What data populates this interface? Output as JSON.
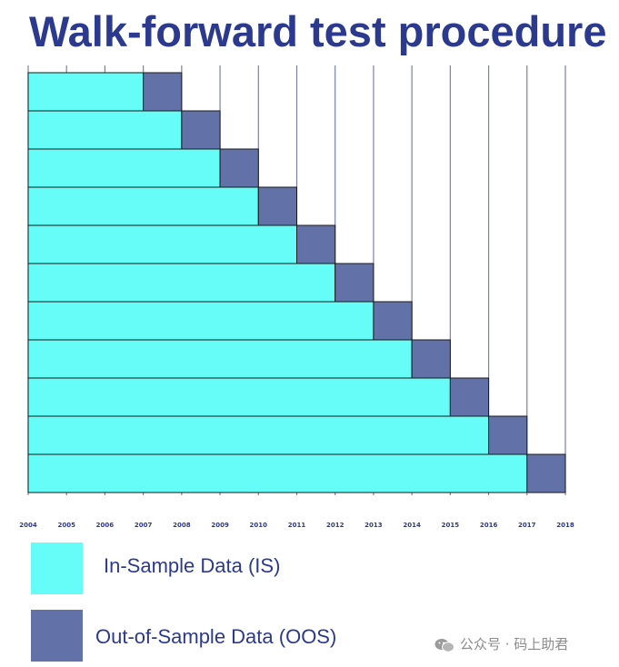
{
  "title": "Walk-forward test procedure",
  "chart_data": {
    "type": "bar",
    "orientation": "horizontal-stacked",
    "x_ticks": [
      "2004",
      "2005",
      "2006",
      "2007",
      "2008",
      "2009",
      "2010",
      "2011",
      "2012",
      "2013",
      "2014",
      "2015",
      "2016",
      "2017",
      "2018"
    ],
    "grid": true,
    "windows": [
      {
        "is_start": 2004,
        "is_end": 2007,
        "oos_end": 2008
      },
      {
        "is_start": 2004,
        "is_end": 2008,
        "oos_end": 2009
      },
      {
        "is_start": 2004,
        "is_end": 2009,
        "oos_end": 2010
      },
      {
        "is_start": 2004,
        "is_end": 2010,
        "oos_end": 2011
      },
      {
        "is_start": 2004,
        "is_end": 2011,
        "oos_end": 2012
      },
      {
        "is_start": 2004,
        "is_end": 2012,
        "oos_end": 2013
      },
      {
        "is_start": 2004,
        "is_end": 2013,
        "oos_end": 2014
      },
      {
        "is_start": 2004,
        "is_end": 2014,
        "oos_end": 2015
      },
      {
        "is_start": 2004,
        "is_end": 2015,
        "oos_end": 2016
      },
      {
        "is_start": 2004,
        "is_end": 2016,
        "oos_end": 2017
      },
      {
        "is_start": 2004,
        "is_end": 2017,
        "oos_end": 2018
      }
    ],
    "colors": {
      "is": "#66fcf7",
      "oos": "#6272a8",
      "grid": "#7a80a8",
      "text": "#2b3a8f"
    },
    "legend_placement": "bottom-left"
  },
  "legend": [
    {
      "label": "In-Sample Data (IS)",
      "color": "#66fcf7"
    },
    {
      "label": "Out-of-Sample Data (OOS)",
      "color": "#6272a8"
    }
  ],
  "watermark": "公众号 · 码上助君"
}
